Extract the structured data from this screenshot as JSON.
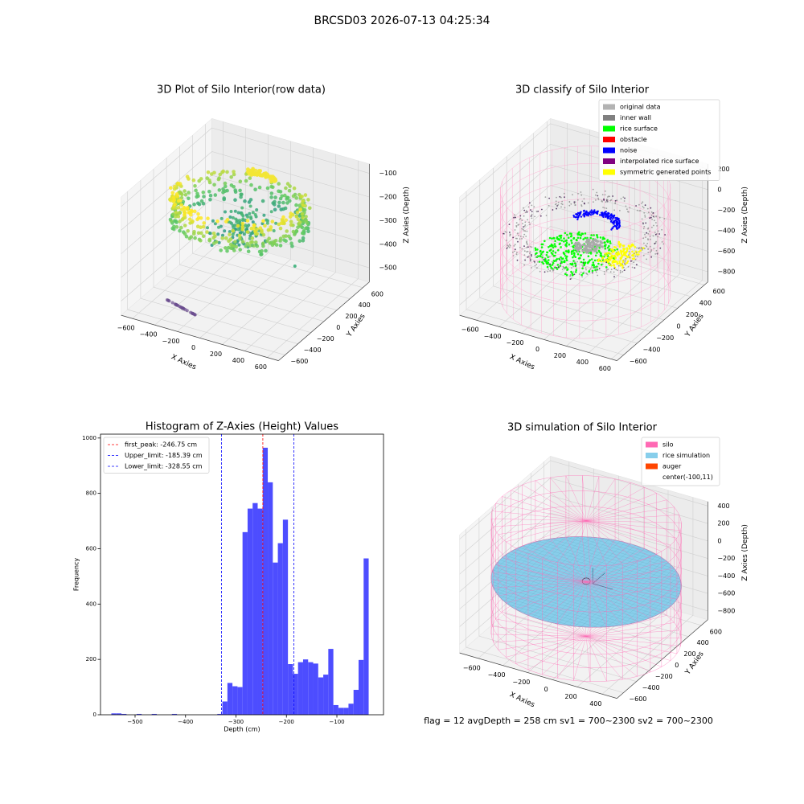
{
  "title": "BRCSD03 2026-07-13 04:25:34",
  "footer": "flag = 12  avgDepth = 258 cm  sv1 = 700~2300  sv2 = 700~2300",
  "chart_data": [
    {
      "type": "scatter3d",
      "title": "3D Plot of Silo Interior(row data)",
      "xlabel": "X Axies",
      "ylabel": "Y Axies",
      "zlabel": "Z Axies (Depth)",
      "xlim": [
        -700,
        700
      ],
      "ylim": [
        -700,
        700
      ],
      "zlim": [
        -560,
        -60
      ],
      "xticks": [
        {
          "value": -600,
          "label": "−600"
        },
        {
          "value": -400,
          "label": "−400"
        },
        {
          "value": -200,
          "label": "−200"
        },
        0,
        200,
        400,
        600
      ],
      "yticks": [
        {
          "value": -600,
          "label": "−600"
        },
        {
          "value": -400,
          "label": "−400"
        },
        {
          "value": -200,
          "label": "−200"
        },
        0,
        200,
        400,
        600
      ],
      "zticks": [
        {
          "value": -100,
          "label": "−100"
        },
        {
          "value": -200,
          "label": "−200"
        },
        {
          "value": -300,
          "label": "−300"
        },
        {
          "value": -400,
          "label": "−400"
        },
        {
          "value": -500,
          "label": "−500"
        }
      ]
    },
    {
      "type": "classify3d",
      "title": "3D classify of Silo Interior",
      "xlabel": "X Axies",
      "ylabel": "Y Axies",
      "zlabel": "Z Axies (Depth)",
      "xlim": [
        -750,
        650
      ],
      "ylim": [
        -700,
        650
      ],
      "zlim": [
        -900,
        250
      ],
      "xticks": [
        {
          "value": -600,
          "label": "−600"
        },
        {
          "value": -400,
          "label": "−400"
        },
        {
          "value": -200,
          "label": "−200"
        },
        0,
        200,
        400,
        600
      ],
      "yticks": [
        {
          "value": -600,
          "label": "−600"
        },
        {
          "value": -400,
          "label": "−400"
        },
        {
          "value": -200,
          "label": "−200"
        },
        0,
        200,
        400,
        600
      ],
      "zticks": [
        200,
        0,
        {
          "value": -200,
          "label": "−200"
        },
        {
          "value": -400,
          "label": "−400"
        },
        {
          "value": -600,
          "label": "−600"
        },
        {
          "value": -800,
          "label": "−800"
        }
      ],
      "legend_loc": "upper right",
      "legend": [
        {
          "name": "original data",
          "color": "#b3b3b3"
        },
        {
          "name": "inner wall",
          "color": "#808080"
        },
        {
          "name": "rice surface",
          "color": "#00ff00"
        },
        {
          "name": "obstacle",
          "color": "#ff0000"
        },
        {
          "name": "noise",
          "color": "#0000ff"
        },
        {
          "name": "interpolated rice surface",
          "color": "#800080"
        },
        {
          "name": "symmetric generated points",
          "color": "#ffff00"
        }
      ]
    },
    {
      "type": "histogram",
      "title": "Histogram of Z-Axies (Height) Values",
      "xlabel": "Depth (cm)",
      "ylabel": "Frequency",
      "color": "#4d4dff",
      "bins": [
        -547,
        -537,
        -527,
        -517,
        -507,
        -497,
        -487,
        -477,
        -467,
        -457,
        -447,
        -437,
        -427,
        -417,
        -407,
        -397,
        -387,
        -377,
        -367,
        -357,
        -347,
        -337,
        -327,
        -317,
        -307,
        -297,
        -287,
        -277,
        -267,
        -257,
        -247,
        -237,
        -227,
        -217,
        -207,
        -197,
        -187,
        -177,
        -167,
        -157,
        -147,
        -137,
        -127,
        -117,
        -107,
        -97,
        -87,
        -77,
        -67,
        -57,
        -47,
        -37
      ],
      "values": [
        5,
        5,
        3,
        0,
        0,
        3,
        0,
        0,
        3,
        0,
        0,
        0,
        3,
        0,
        0,
        0,
        0,
        0,
        0,
        0,
        0,
        3,
        48,
        115,
        103,
        100,
        660,
        745,
        765,
        745,
        965,
        840,
        550,
        620,
        705,
        183,
        148,
        190,
        200,
        190,
        185,
        135,
        145,
        238,
        35,
        25,
        25,
        40,
        90,
        198,
        565
      ],
      "xlim": [
        -568.5,
        -7.6
      ],
      "ylim": [
        0,
        1014
      ],
      "xticks": [
        {
          "value": -500,
          "label": "−500"
        },
        {
          "value": -400,
          "label": "−400"
        },
        {
          "value": -300,
          "label": "−300"
        },
        {
          "value": -200,
          "label": "−200"
        },
        {
          "value": -100,
          "label": "−100"
        }
      ],
      "yticks": [
        0,
        200,
        400,
        600,
        800,
        1000
      ],
      "legend_loc": "upper left",
      "lines": [
        {
          "name": "first_peak: -246.75 cm",
          "value": -246.75,
          "color": "#ff0000"
        },
        {
          "name": "Upper_limit: -185.39 cm",
          "value": -185.39,
          "color": "#0000ff"
        },
        {
          "name": "Lower_limit: -328.55 cm",
          "value": -328.55,
          "color": "#0000ff"
        }
      ]
    },
    {
      "type": "simulation3d",
      "title": "3D simulation of Silo Interior",
      "xlabel": "X Axies",
      "ylabel": "Y Axies",
      "zlabel": "Z Axies (Depth)",
      "xlim": [
        -750,
        520
      ],
      "ylim": [
        -700,
        700
      ],
      "zlim": [
        -900,
        450
      ],
      "xticks": [
        {
          "value": -600,
          "label": "−600"
        },
        {
          "value": -400,
          "label": "−400"
        },
        {
          "value": -200,
          "label": "−200"
        },
        0,
        200,
        400
      ],
      "yticks": [
        {
          "value": -600,
          "label": "−600"
        },
        {
          "value": -400,
          "label": "−400"
        },
        {
          "value": -200,
          "label": "−200"
        },
        0,
        200,
        400,
        600
      ],
      "zticks": [
        400,
        200,
        0,
        {
          "value": -200,
          "label": "−200"
        },
        {
          "value": -400,
          "label": "−400"
        },
        {
          "value": -600,
          "label": "−600"
        },
        {
          "value": -800,
          "label": "−800"
        }
      ],
      "legend_loc": "upper right",
      "legend": [
        {
          "name": "silo",
          "color": "#ff69b4"
        },
        {
          "name": "rice simulation",
          "color": "#87ceeb"
        },
        {
          "name": "auger",
          "color": "#ff4500"
        },
        {
          "name": "center(-100,11)"
        }
      ]
    }
  ]
}
